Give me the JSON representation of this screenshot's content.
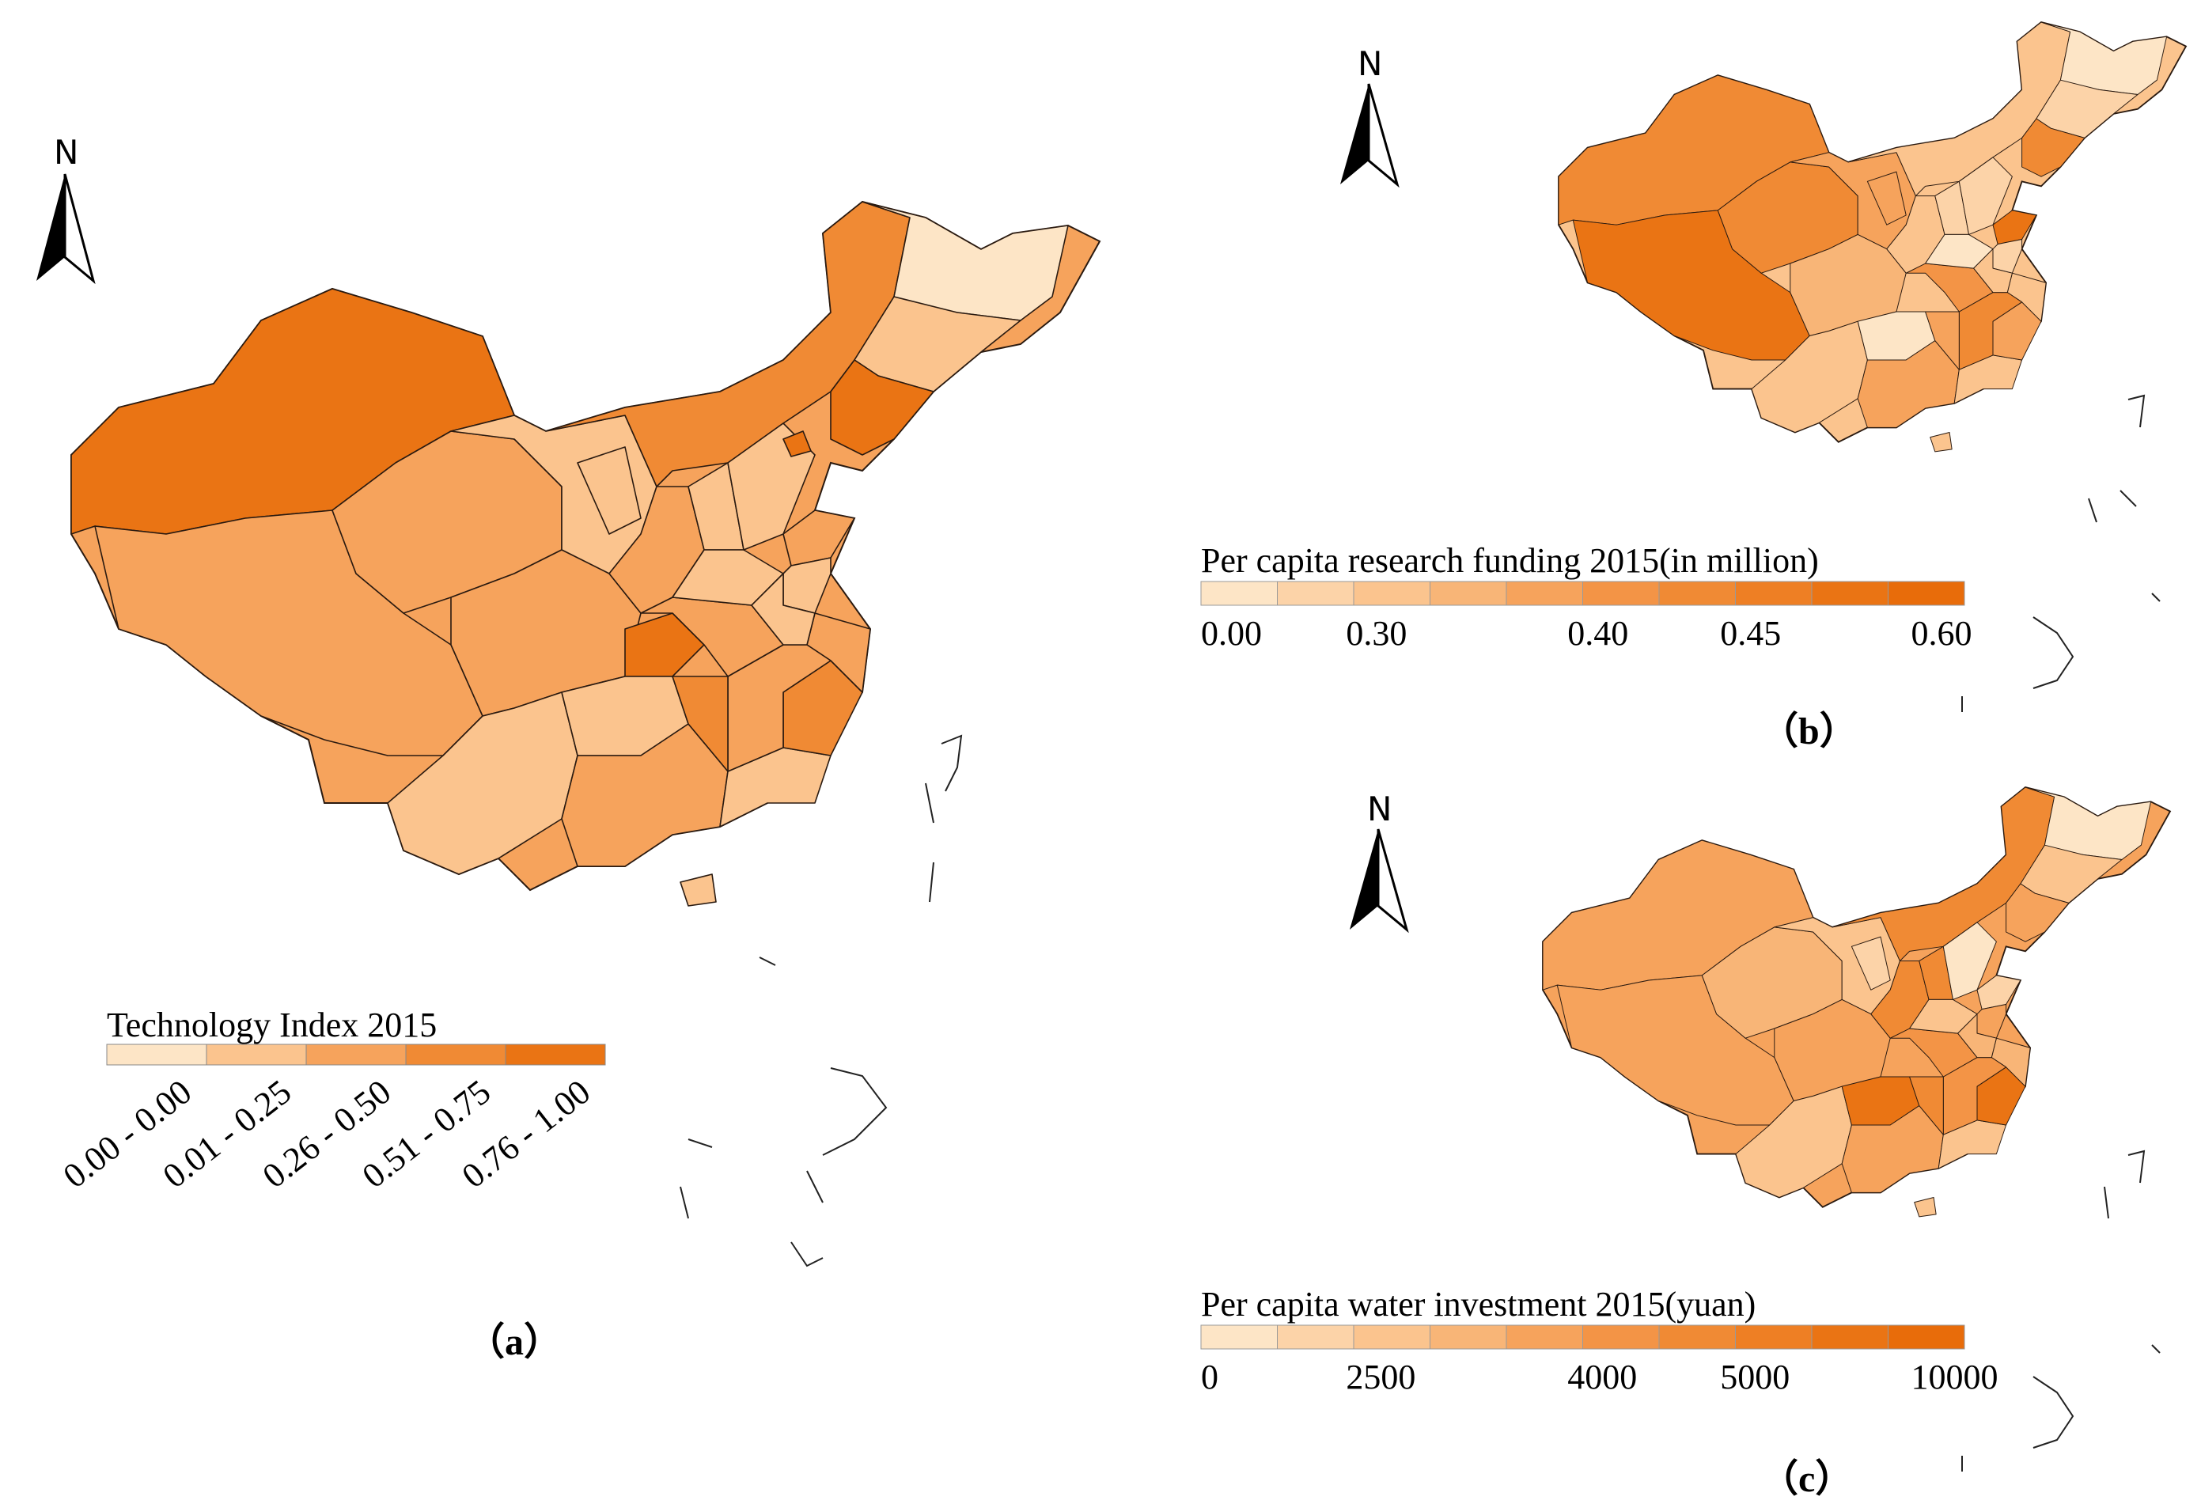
{
  "panels": [
    {
      "id": "a",
      "label": "（a）",
      "north": "N",
      "legend_title": "Technology Index 2015",
      "legend_classes": [
        "0.00 - 0.00",
        "0.01 - 0.25",
        "0.26 - 0.50",
        "0.51 - 0.75",
        "0.76 - 1.00"
      ],
      "colors": [
        "#fde5c6",
        "#fbc48e",
        "#f6a35c",
        "#f08a34",
        "#ea7414"
      ]
    },
    {
      "id": "b",
      "label": "（b）",
      "north": "N",
      "legend_title": "Per capita research funding 2015(in million)",
      "legend_ticks": [
        "0.00",
        "0.30",
        "0.40",
        "0.45",
        "0.60"
      ],
      "colors": [
        "#fde5c6",
        "#fcd3a8",
        "#fbc48e",
        "#f8b577",
        "#f6a35c",
        "#f39446",
        "#f08a34",
        "#ee7f24",
        "#ea7414",
        "#e86c0a"
      ]
    },
    {
      "id": "c",
      "label": "（c）",
      "north": "N",
      "legend_title": "Per capita water investment 2015(yuan)",
      "legend_ticks": [
        "0",
        "2500",
        "4000",
        "5000",
        "10000"
      ],
      "colors": [
        "#fde5c6",
        "#fcd3a8",
        "#fbc48e",
        "#f8b577",
        "#f6a35c",
        "#f39446",
        "#f08a34",
        "#ee7f24",
        "#ea7414",
        "#e86c0a"
      ]
    }
  ]
}
